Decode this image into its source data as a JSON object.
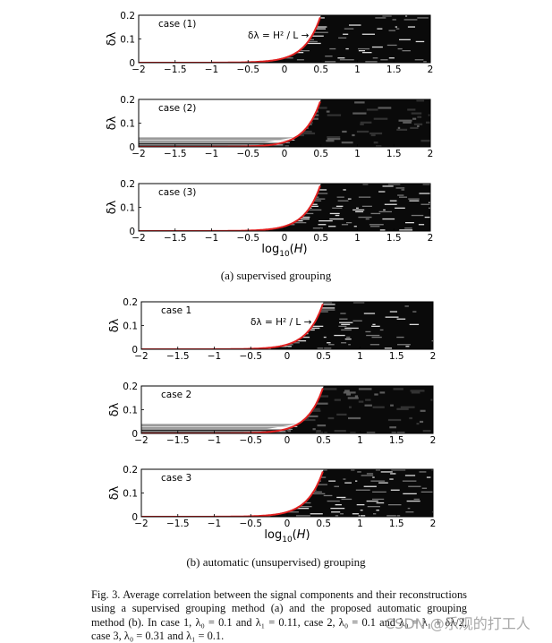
{
  "figure": {
    "panels": [
      {
        "case": "case (1)",
        "annotation": "δλ = H² / L",
        "band_top": 0
      },
      {
        "case": "case (2)",
        "annotation": "",
        "band_top": 0.04
      },
      {
        "case": "case (3)",
        "annotation": "",
        "band_top": 0
      },
      {
        "case": "case 1",
        "annotation": "δλ = H² / L",
        "band_top": 0
      },
      {
        "case": "case 2",
        "annotation": "",
        "band_top": 0.04
      },
      {
        "case": "case 3",
        "annotation": "",
        "band_top": 0
      }
    ],
    "ylabel": "δλ",
    "xlabel_prefix": "log",
    "xlabel_sub": "10",
    "xlabel_var": "H",
    "x_ticks": [
      -2,
      -1.5,
      -1,
      -0.5,
      0,
      0.5,
      1,
      1.5,
      2
    ],
    "y_ticks": [
      0,
      0.1,
      0.2
    ],
    "x_range": [
      -2,
      2
    ],
    "y_range": [
      0,
      0.2
    ],
    "curve_color": "#e02020"
  },
  "subcaption_a": "(a)  supervised grouping",
  "subcaption_b": "(b)  automatic (unsupervised) grouping",
  "caption": "Fig. 3.   Average correlation between the signal components and their reconstructions using a supervised grouping method (a) and the proposed automatic grouping method (b). In case 1, λ₀ = 0.1 and λ₁ = 0.11, case 2, λ₀ = 0.1 and λ₀ = λ₁ + δλ/2, case 3, λ₀ = 0.31 and λ₁ = 0.1.",
  "watermark": "CSDN @乐观的打工人"
}
